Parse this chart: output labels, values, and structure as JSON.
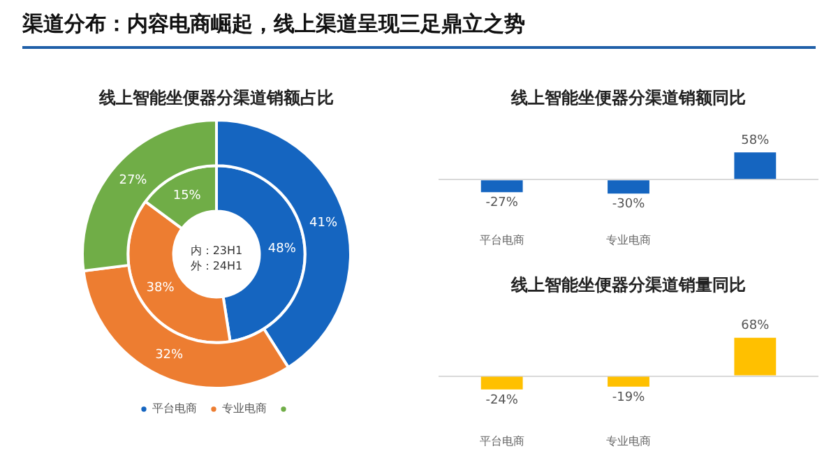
{
  "chart_data": [
    {
      "type": "donut",
      "title": "线上智能坐便器分渠道销额占比",
      "annotations": [
        "渠道分布：内容电商崛起，线上渠道呈现三足鼎立之势",
        "内：23H1\n外：24H1"
      ],
      "categories": [
        "平台电商",
        "专业电商",
        null
      ],
      "colors": [
        "#1565c0",
        "#ed7d31",
        "#70ad47"
      ],
      "series": [
        {
          "values": [
            41,
            32,
            27
          ],
          "value_labels": [
            "41%",
            "32%",
            "27%"
          ]
        },
        {
          "values": [
            48,
            38,
            15
          ],
          "value_labels": [
            "48%",
            "38%",
            "15%"
          ]
        }
      ],
      "legend": "bottom"
    },
    {
      "type": "bar",
      "title": "线上智能坐便器分渠道销额同比",
      "categories": [
        "平台电商",
        "专业电商",
        null
      ],
      "values": [
        -27,
        -30,
        58
      ],
      "value_labels": [
        "-27%",
        "-30%",
        "58%"
      ],
      "color": "#1565c0"
    },
    {
      "type": "bar",
      "title": "线上智能坐便器分渠道销量同比",
      "categories": [
        "平台电商",
        "专业电商",
        null
      ],
      "values": [
        -24,
        -19,
        68
      ],
      "value_labels": [
        "-24%",
        "-19%",
        "68%"
      ],
      "color": "#ffc000"
    }
  ]
}
